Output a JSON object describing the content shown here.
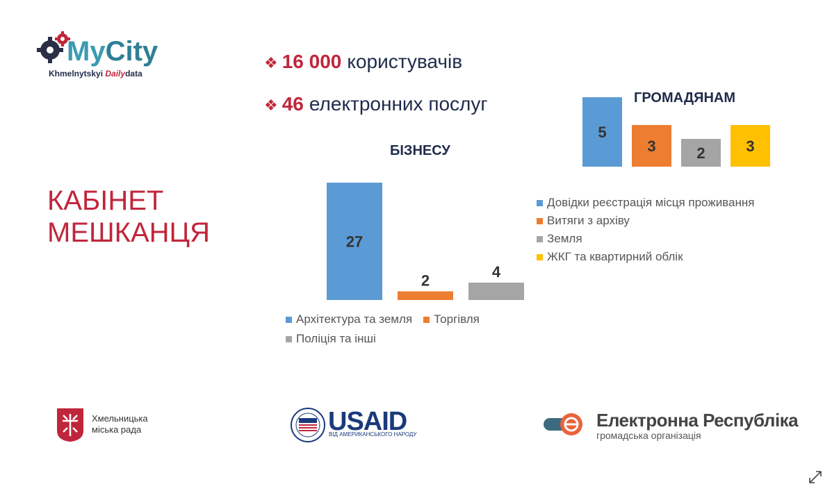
{
  "logo": {
    "title_part1": "My",
    "title_part2": "City",
    "subtitle_part1": "Khmelnytskyi ",
    "subtitle_part2": "Daily",
    "subtitle_part3": "data"
  },
  "stats": [
    {
      "value": "16 000",
      "label": "користувачів"
    },
    {
      "value": "46",
      "label": "електронних  послуг"
    }
  ],
  "main_heading": {
    "line1": "КАБІНЕТ",
    "line2": "МЕШКАНЦЯ"
  },
  "chart_data": [
    {
      "type": "bar",
      "title": "ГРОМАДЯНАМ",
      "categories": [
        "Довідки реєстрація місця проживання",
        "Витяги з архіву",
        "Земля",
        "ЖКГ та квартирний  облік"
      ],
      "values": [
        5,
        3,
        2,
        3
      ],
      "colors": [
        "#5b9bd5",
        "#ed7d31",
        "#a5a5a5",
        "#ffc000"
      ],
      "label_position": "inside",
      "legend_position": "bottom",
      "grid": false,
      "ylim": [
        0,
        5
      ]
    },
    {
      "type": "bar",
      "title": "БІЗНЕСУ",
      "categories": [
        "Архітектура та земля",
        "Торгівля",
        "Поліція та інші"
      ],
      "values": [
        27,
        2,
        4
      ],
      "colors": [
        "#5b9bd5",
        "#ed7d31",
        "#a5a5a5"
      ],
      "label_position": "inside-or-above",
      "legend_position": "bottom",
      "grid": false,
      "ylim": [
        0,
        27
      ]
    }
  ],
  "footer": {
    "khm_line1": "Хмельницька",
    "khm_line2": "міська рада",
    "usaid_title": "USAID",
    "usaid_sub": "ВІД АМЕРИКАНСЬКОГО НАРОДУ",
    "er_title": "Електронна Республіка",
    "er_sub": "громадська організація"
  },
  "icons": {
    "expand": "expand-icon",
    "diamond": "diamond-bullet-icon"
  }
}
